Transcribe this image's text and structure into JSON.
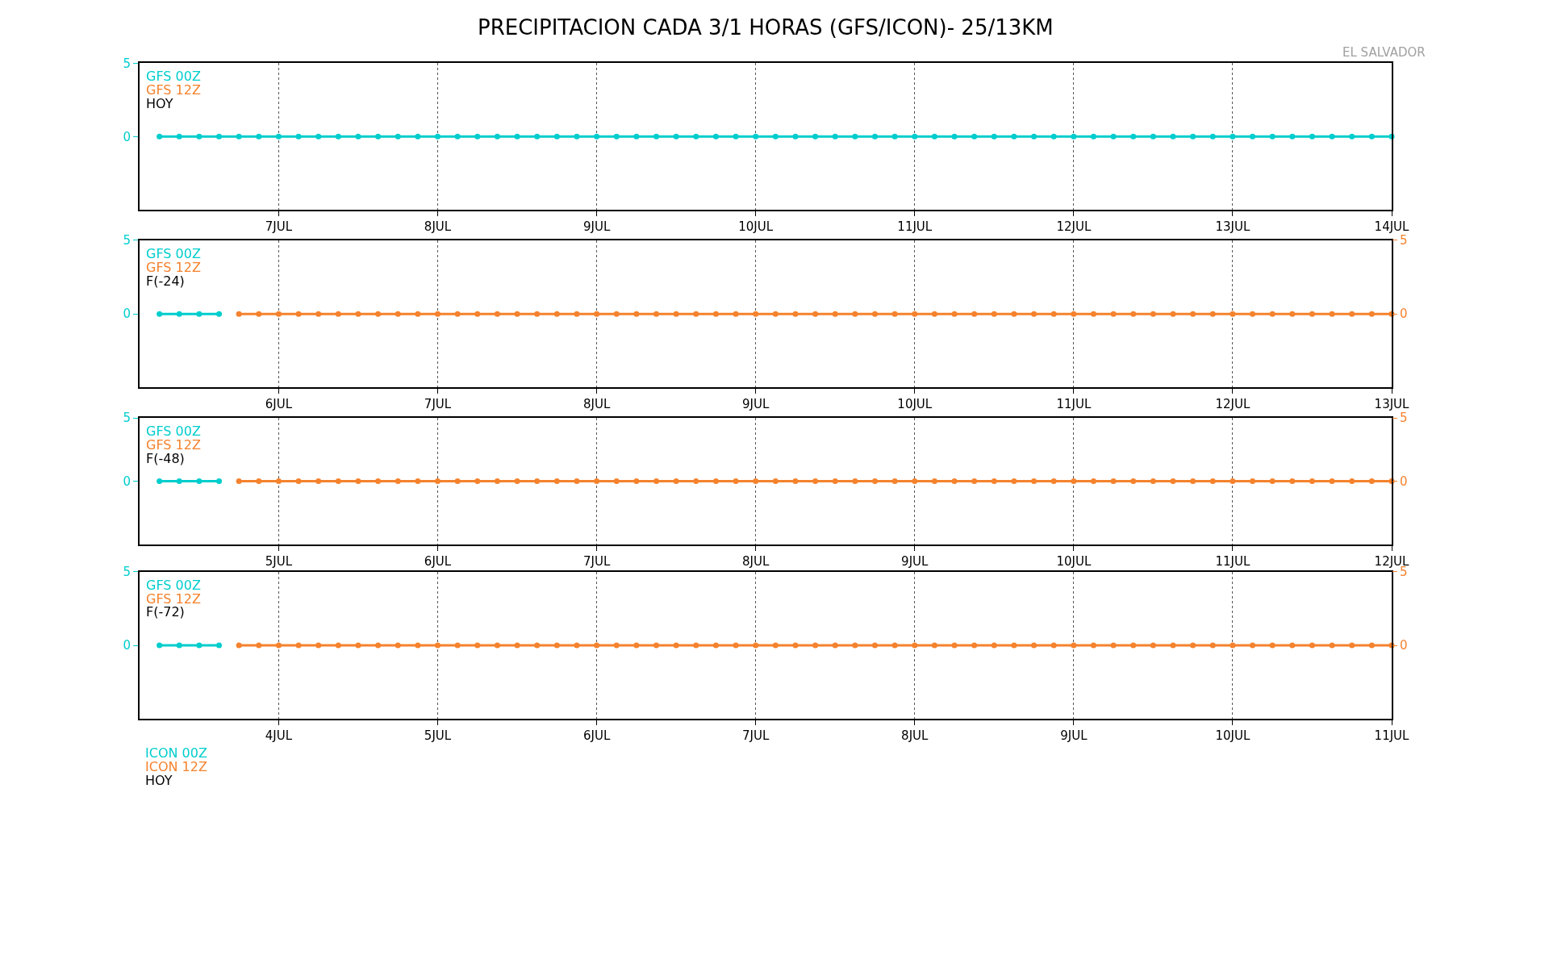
{
  "chart_data": [
    {
      "type": "line",
      "title": "PRECIPITACION CADA 3/1 HORAS (GFS/ICON)- 25/13KM",
      "annotations": [
        "HOY",
        "EL SALVADOR"
      ],
      "x": [
        "--07-06T06:00",
        "--07-06T09:00",
        "--07-06T12:00",
        "--07-06T15:00",
        "--07-06T18:00",
        "--07-06T21:00",
        "--07-07T00:00",
        "--07-07T03:00",
        "--07-07T06:00",
        "--07-07T09:00",
        "--07-07T12:00",
        "--07-07T15:00",
        "--07-07T18:00",
        "--07-07T21:00",
        "--07-08T00:00",
        "--07-08T03:00",
        "--07-08T06:00",
        "--07-08T09:00",
        "--07-08T12:00",
        "--07-08T15:00",
        "--07-08T18:00",
        "--07-08T21:00",
        "--07-09T00:00",
        "--07-09T03:00",
        "--07-09T06:00",
        "--07-09T09:00",
        "--07-09T12:00",
        "--07-09T15:00",
        "--07-09T18:00",
        "--07-09T21:00",
        "--07-10T00:00",
        "--07-10T03:00",
        "--07-10T06:00",
        "--07-10T09:00",
        "--07-10T12:00",
        "--07-10T15:00",
        "--07-10T18:00",
        "--07-10T21:00",
        "--07-11T00:00",
        "--07-11T03:00",
        "--07-11T06:00",
        "--07-11T09:00",
        "--07-11T12:00",
        "--07-11T15:00",
        "--07-11T18:00",
        "--07-11T21:00",
        "--07-12T00:00",
        "--07-12T03:00",
        "--07-12T06:00",
        "--07-12T09:00",
        "--07-12T12:00",
        "--07-12T15:00",
        "--07-12T18:00",
        "--07-12T21:00",
        "--07-13T00:00",
        "--07-13T03:00",
        "--07-13T06:00",
        "--07-13T09:00",
        "--07-13T12:00",
        "--07-13T15:00",
        "--07-13T18:00",
        "--07-13T21:00",
        "--07-14T00:00"
      ],
      "series": [
        {
          "name": "GFS 00Z",
          "color": "#00cdcd",
          "values": [
            0,
            0,
            0,
            0,
            0,
            0,
            0,
            0,
            0,
            0,
            0,
            0,
            0,
            0,
            0,
            0,
            0,
            0,
            0,
            0,
            0,
            0,
            0,
            0,
            0,
            0,
            0,
            0,
            0,
            0,
            0,
            0,
            0,
            0,
            0,
            0,
            0,
            0,
            0,
            0,
            0,
            0,
            0,
            0,
            0,
            0,
            0,
            0,
            0,
            0,
            0,
            0,
            0,
            0,
            0,
            0,
            0,
            0,
            0,
            0,
            0,
            0,
            0
          ]
        },
        {
          "name": "GFS 12Z",
          "color": "#f5822d",
          "values": [
            null,
            null,
            null,
            null,
            null,
            null,
            null,
            null,
            null,
            null,
            null,
            null,
            null,
            null,
            null,
            null,
            null,
            null,
            null,
            null,
            null,
            null,
            null,
            null,
            null,
            null,
            null,
            null,
            null,
            null,
            null,
            null,
            null,
            null,
            null,
            null,
            null,
            null,
            null,
            null,
            null,
            null,
            null,
            null,
            null,
            null,
            null,
            null,
            null,
            null,
            null,
            null,
            null,
            null,
            null,
            null,
            null,
            null,
            null,
            null,
            null,
            null,
            null
          ]
        }
      ],
      "xlim": [
        "--07-06T03:00",
        "--07-14T00:00"
      ],
      "xticks": [
        {
          "value": "--07-07",
          "label": "7JUL"
        },
        {
          "value": "--07-08",
          "label": "8JUL"
        },
        {
          "value": "--07-09",
          "label": "9JUL"
        },
        {
          "value": "--07-10",
          "label": "10JUL"
        },
        {
          "value": "--07-11",
          "label": "11JUL"
        },
        {
          "value": "--07-12",
          "label": "12JUL"
        },
        {
          "value": "--07-13",
          "label": "13JUL"
        },
        {
          "value": "--07-14",
          "label": "14JUL"
        }
      ],
      "ylim": [
        -5,
        5
      ],
      "yticks": [
        0,
        5
      ],
      "grid": "x",
      "legend": "top left",
      "marker": "circle",
      "line_style": "solid"
    },
    {
      "type": "line",
      "annotations": [
        "F(-24)"
      ],
      "x": [
        "--07-05T06:00",
        "--07-05T09:00",
        "--07-05T12:00",
        "--07-05T15:00",
        "--07-05T18:00",
        "--07-05T21:00",
        "--07-06T00:00",
        "--07-06T03:00",
        "--07-06T06:00",
        "--07-06T09:00",
        "--07-06T12:00",
        "--07-06T15:00",
        "--07-06T18:00",
        "--07-06T21:00",
        "--07-07T00:00",
        "--07-07T03:00",
        "--07-07T06:00",
        "--07-07T09:00",
        "--07-07T12:00",
        "--07-07T15:00",
        "--07-07T18:00",
        "--07-07T21:00",
        "--07-08T00:00",
        "--07-08T03:00",
        "--07-08T06:00",
        "--07-08T09:00",
        "--07-08T12:00",
        "--07-08T15:00",
        "--07-08T18:00",
        "--07-08T21:00",
        "--07-09T00:00",
        "--07-09T03:00",
        "--07-09T06:00",
        "--07-09T09:00",
        "--07-09T12:00",
        "--07-09T15:00",
        "--07-09T18:00",
        "--07-09T21:00",
        "--07-10T00:00",
        "--07-10T03:00",
        "--07-10T06:00",
        "--07-10T09:00",
        "--07-10T12:00",
        "--07-10T15:00",
        "--07-10T18:00",
        "--07-10T21:00",
        "--07-11T00:00",
        "--07-11T03:00",
        "--07-11T06:00",
        "--07-11T09:00",
        "--07-11T12:00",
        "--07-11T15:00",
        "--07-11T18:00",
        "--07-11T21:00",
        "--07-12T00:00",
        "--07-12T03:00",
        "--07-12T06:00",
        "--07-12T09:00",
        "--07-12T12:00",
        "--07-12T15:00",
        "--07-12T18:00",
        "--07-12T21:00",
        "--07-13T00:00"
      ],
      "series": [
        {
          "name": "GFS 00Z",
          "color": "#00cdcd",
          "values": [
            0,
            0,
            0,
            0,
            null,
            null,
            null,
            null,
            null,
            null,
            null,
            null,
            null,
            null,
            null,
            null,
            null,
            null,
            null,
            null,
            null,
            null,
            null,
            null,
            null,
            null,
            null,
            null,
            null,
            null,
            null,
            null,
            null,
            null,
            null,
            null,
            null,
            null,
            null,
            null,
            null,
            null,
            null,
            null,
            null,
            null,
            null,
            null,
            null,
            null,
            null,
            null,
            null,
            null,
            null,
            null,
            null,
            null,
            null,
            null,
            null,
            null,
            null
          ]
        },
        {
          "name": "GFS 12Z",
          "color": "#f5822d",
          "axis": "y2",
          "values": [
            null,
            null,
            null,
            null,
            0,
            0,
            0,
            0,
            0,
            0,
            0,
            0,
            0,
            0,
            0,
            0,
            0,
            0,
            0,
            0,
            0,
            0,
            0,
            0,
            0,
            0,
            0,
            0,
            0,
            0,
            0,
            0,
            0,
            0,
            0,
            0,
            0,
            0,
            0,
            0,
            0,
            0,
            0,
            0,
            0,
            0,
            0,
            0,
            0,
            0,
            0,
            0,
            0,
            0,
            0,
            0,
            0,
            0,
            0,
            0,
            0,
            0,
            0
          ]
        }
      ],
      "xlim": [
        "--07-05T03:00",
        "--07-13T00:00"
      ],
      "xticks": [
        {
          "value": "--07-06",
          "label": "6JUL"
        },
        {
          "value": "--07-07",
          "label": "7JUL"
        },
        {
          "value": "--07-08",
          "label": "8JUL"
        },
        {
          "value": "--07-09",
          "label": "9JUL"
        },
        {
          "value": "--07-10",
          "label": "10JUL"
        },
        {
          "value": "--07-11",
          "label": "11JUL"
        },
        {
          "value": "--07-12",
          "label": "12JUL"
        },
        {
          "value": "--07-13",
          "label": "13JUL"
        }
      ],
      "ylim": [
        -5,
        5
      ],
      "yticks": [
        0,
        5
      ],
      "y2lim": [
        -5,
        5
      ],
      "y2ticks": [
        0,
        5
      ],
      "grid": "x",
      "legend": "top left",
      "marker": "circle",
      "line_style": "solid"
    },
    {
      "type": "line",
      "annotations": [
        "F(-48)"
      ],
      "x": [
        "--07-04T06:00",
        "--07-04T09:00",
        "--07-04T12:00",
        "--07-04T15:00",
        "--07-04T18:00",
        "--07-04T21:00",
        "--07-05T00:00",
        "--07-05T03:00",
        "--07-05T06:00",
        "--07-05T09:00",
        "--07-05T12:00",
        "--07-05T15:00",
        "--07-05T18:00",
        "--07-05T21:00",
        "--07-06T00:00",
        "--07-06T03:00",
        "--07-06T06:00",
        "--07-06T09:00",
        "--07-06T12:00",
        "--07-06T15:00",
        "--07-06T18:00",
        "--07-06T21:00",
        "--07-07T00:00",
        "--07-07T03:00",
        "--07-07T06:00",
        "--07-07T09:00",
        "--07-07T12:00",
        "--07-07T15:00",
        "--07-07T18:00",
        "--07-07T21:00",
        "--07-08T00:00",
        "--07-08T03:00",
        "--07-08T06:00",
        "--07-08T09:00",
        "--07-08T12:00",
        "--07-08T15:00",
        "--07-08T18:00",
        "--07-08T21:00",
        "--07-09T00:00",
        "--07-09T03:00",
        "--07-09T06:00",
        "--07-09T09:00",
        "--07-09T12:00",
        "--07-09T15:00",
        "--07-09T18:00",
        "--07-09T21:00",
        "--07-10T00:00",
        "--07-10T03:00",
        "--07-10T06:00",
        "--07-10T09:00",
        "--07-10T12:00",
        "--07-10T15:00",
        "--07-10T18:00",
        "--07-10T21:00",
        "--07-11T00:00",
        "--07-11T03:00",
        "--07-11T06:00",
        "--07-11T09:00",
        "--07-11T12:00",
        "--07-11T15:00",
        "--07-11T18:00",
        "--07-11T21:00",
        "--07-12T00:00"
      ],
      "series": [
        {
          "name": "GFS 00Z",
          "color": "#00cdcd",
          "values": [
            0,
            0,
            0,
            0,
            null,
            null,
            null,
            null,
            null,
            null,
            null,
            null,
            null,
            null,
            null,
            null,
            null,
            null,
            null,
            null,
            null,
            null,
            null,
            null,
            null,
            null,
            null,
            null,
            null,
            null,
            null,
            null,
            null,
            null,
            null,
            null,
            null,
            null,
            null,
            null,
            null,
            null,
            null,
            null,
            null,
            null,
            null,
            null,
            null,
            null,
            null,
            null,
            null,
            null,
            null,
            null,
            null,
            null,
            null,
            null,
            null,
            null,
            null
          ]
        },
        {
          "name": "GFS 12Z",
          "color": "#f5822d",
          "axis": "y2",
          "values": [
            null,
            null,
            null,
            null,
            0,
            0,
            0,
            0,
            0,
            0,
            0,
            0,
            0,
            0,
            0,
            0,
            0,
            0,
            0,
            0,
            0,
            0,
            0,
            0,
            0,
            0,
            0,
            0,
            0,
            0,
            0,
            0,
            0,
            0,
            0,
            0,
            0,
            0,
            0,
            0,
            0,
            0,
            0,
            0,
            0,
            0,
            0,
            0,
            0,
            0,
            0,
            0,
            0,
            0,
            0,
            0,
            0,
            0,
            0,
            0,
            0,
            0,
            0
          ]
        }
      ],
      "xlim": [
        "--07-04T03:00",
        "--07-12T00:00"
      ],
      "xticks": [
        {
          "value": "--07-05",
          "label": "5JUL"
        },
        {
          "value": "--07-06",
          "label": "6JUL"
        },
        {
          "value": "--07-07",
          "label": "7JUL"
        },
        {
          "value": "--07-08",
          "label": "8JUL"
        },
        {
          "value": "--07-09",
          "label": "9JUL"
        },
        {
          "value": "--07-10",
          "label": "10JUL"
        },
        {
          "value": "--07-11",
          "label": "11JUL"
        },
        {
          "value": "--07-12",
          "label": "12JUL"
        }
      ],
      "ylim": [
        -5,
        5
      ],
      "yticks": [
        0,
        5
      ],
      "y2lim": [
        -5,
        5
      ],
      "y2ticks": [
        0,
        5
      ],
      "grid": "x",
      "legend": "top left",
      "marker": "circle",
      "line_style": "solid"
    },
    {
      "type": "line",
      "annotations": [
        "F(-72)"
      ],
      "x": [
        "--07-03T06:00",
        "--07-03T09:00",
        "--07-03T12:00",
        "--07-03T15:00",
        "--07-03T18:00",
        "--07-03T21:00",
        "--07-04T00:00",
        "--07-04T03:00",
        "--07-04T06:00",
        "--07-04T09:00",
        "--07-04T12:00",
        "--07-04T15:00",
        "--07-04T18:00",
        "--07-04T21:00",
        "--07-05T00:00",
        "--07-05T03:00",
        "--07-05T06:00",
        "--07-05T09:00",
        "--07-05T12:00",
        "--07-05T15:00",
        "--07-05T18:00",
        "--07-05T21:00",
        "--07-06T00:00",
        "--07-06T03:00",
        "--07-06T06:00",
        "--07-06T09:00",
        "--07-06T12:00",
        "--07-06T15:00",
        "--07-06T18:00",
        "--07-06T21:00",
        "--07-07T00:00",
        "--07-07T03:00",
        "--07-07T06:00",
        "--07-07T09:00",
        "--07-07T12:00",
        "--07-07T15:00",
        "--07-07T18:00",
        "--07-07T21:00",
        "--07-08T00:00",
        "--07-08T03:00",
        "--07-08T06:00",
        "--07-08T09:00",
        "--07-08T12:00",
        "--07-08T15:00",
        "--07-08T18:00",
        "--07-08T21:00",
        "--07-09T00:00",
        "--07-09T03:00",
        "--07-09T06:00",
        "--07-09T09:00",
        "--07-09T12:00",
        "--07-09T15:00",
        "--07-09T18:00",
        "--07-09T21:00",
        "--07-10T00:00",
        "--07-10T03:00",
        "--07-10T06:00",
        "--07-10T09:00",
        "--07-10T12:00",
        "--07-10T15:00",
        "--07-10T18:00",
        "--07-10T21:00",
        "--07-11T00:00"
      ],
      "series": [
        {
          "name": "GFS 00Z",
          "color": "#00cdcd",
          "values": [
            0,
            0,
            0,
            0,
            null,
            null,
            null,
            null,
            null,
            null,
            null,
            null,
            null,
            null,
            null,
            null,
            null,
            null,
            null,
            null,
            null,
            null,
            null,
            null,
            null,
            null,
            null,
            null,
            null,
            null,
            null,
            null,
            null,
            null,
            null,
            null,
            null,
            null,
            null,
            null,
            null,
            null,
            null,
            null,
            null,
            null,
            null,
            null,
            null,
            null,
            null,
            null,
            null,
            null,
            null,
            null,
            null,
            null,
            null,
            null,
            null,
            null,
            null
          ]
        },
        {
          "name": "GFS 12Z",
          "color": "#f5822d",
          "axis": "y2",
          "values": [
            null,
            null,
            null,
            null,
            0,
            0,
            0,
            0,
            0,
            0,
            0,
            0,
            0,
            0,
            0,
            0,
            0,
            0,
            0,
            0,
            0,
            0,
            0,
            0,
            0,
            0,
            0,
            0,
            0,
            0,
            0,
            0,
            0,
            0,
            0,
            0,
            0,
            0,
            0,
            0,
            0,
            0,
            0,
            0,
            0,
            0,
            0,
            0,
            0,
            0,
            0,
            0,
            0,
            0,
            0,
            0,
            0,
            0,
            0,
            0,
            0,
            0,
            0
          ]
        }
      ],
      "xlim": [
        "--07-03T03:00",
        "--07-11T00:00"
      ],
      "xticks": [
        {
          "value": "--07-04",
          "label": "4JUL"
        },
        {
          "value": "--07-05",
          "label": "5JUL"
        },
        {
          "value": "--07-06",
          "label": "6JUL"
        },
        {
          "value": "--07-07",
          "label": "7JUL"
        },
        {
          "value": "--07-08",
          "label": "8JUL"
        },
        {
          "value": "--07-09",
          "label": "9JUL"
        },
        {
          "value": "--07-10",
          "label": "10JUL"
        },
        {
          "value": "--07-11",
          "label": "11JUL"
        }
      ],
      "ylim": [
        -5,
        5
      ],
      "yticks": [
        0,
        5
      ],
      "y2lim": [
        -5,
        5
      ],
      "y2ticks": [
        0,
        5
      ],
      "grid": "x",
      "legend": "top left",
      "marker": "circle",
      "line_style": "solid"
    },
    {
      "type": "other",
      "annotations": [
        "HOY"
      ],
      "series": [
        {
          "name": "ICON 00Z",
          "color": "#00cdcd"
        },
        {
          "name": "ICON 12Z",
          "color": "#f5822d"
        }
      ]
    }
  ]
}
